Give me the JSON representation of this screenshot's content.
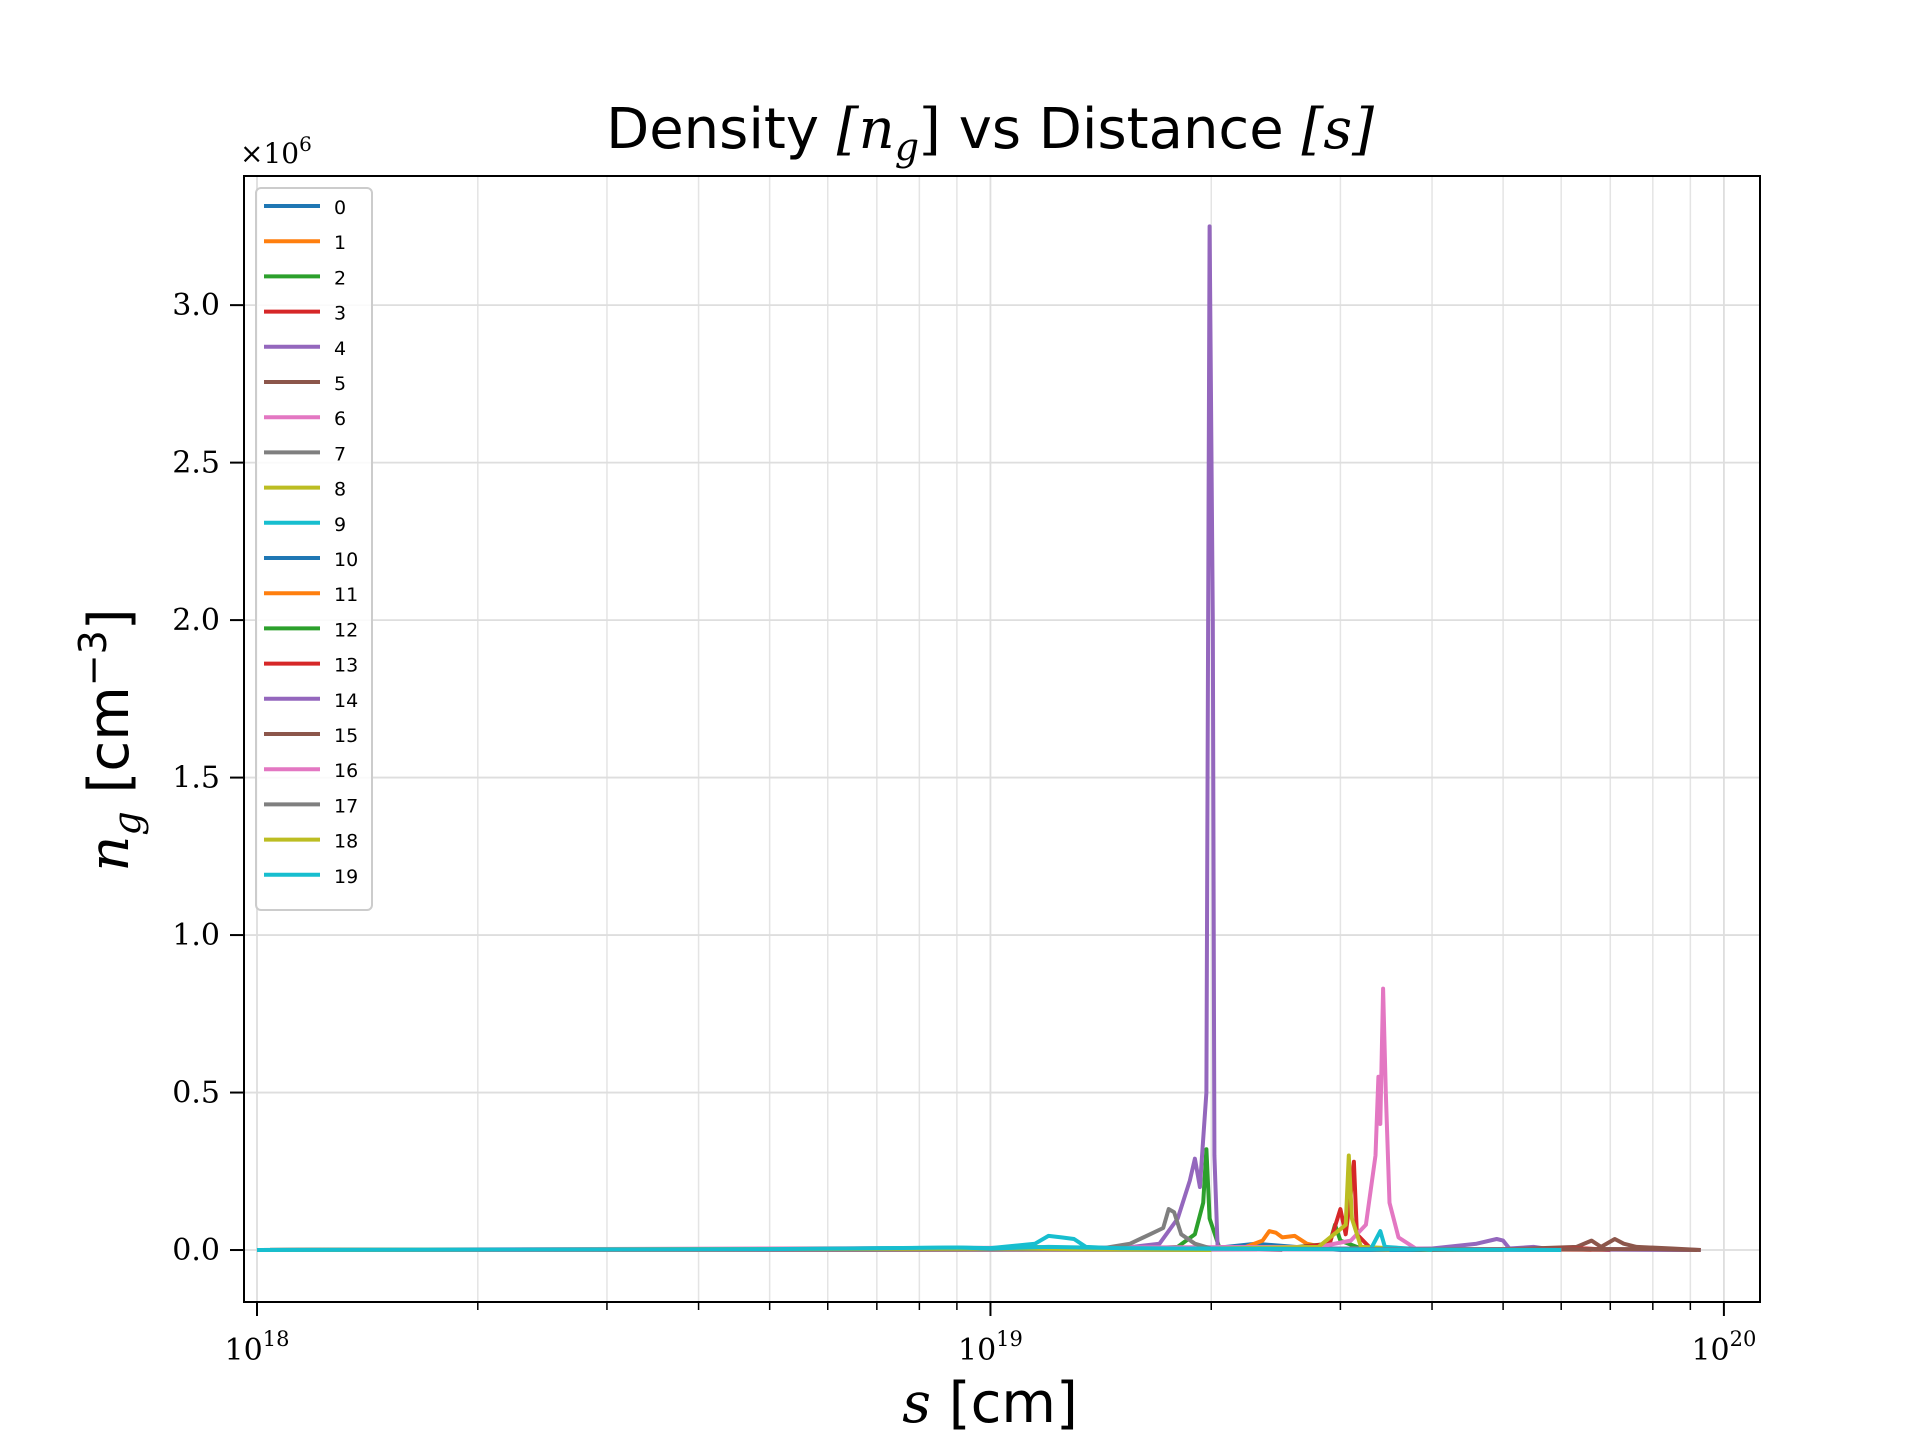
{
  "chart_data": {
    "type": "line",
    "title_prefix": "Density ",
    "title_var1": "[n",
    "title_var1_sub": "g",
    "title_var1_close": "]",
    "title_mid": " vs Distance ",
    "title_var2": "[s]",
    "xlabel_var": "s",
    "xlabel_unit": " [cm]",
    "ylabel_var": "n",
    "ylabel_var_sub": "g",
    "ylabel_unit": " [cm",
    "ylabel_exp": "−3",
    "ylabel_close": "]",
    "y_offset_base": "×10",
    "y_offset_exp": "6",
    "x_scale": "log",
    "xlim": [
      9.6e+17,
      1.12e+20
    ],
    "ylim": [
      -0.165,
      3.41
    ],
    "grid": true,
    "legend_position": "top-left",
    "x_ticks": [
      {
        "value": 1e+18,
        "base": "10",
        "exp": "18"
      },
      {
        "value": 1e+19,
        "base": "10",
        "exp": "19"
      },
      {
        "value": 1e+20,
        "base": "10",
        "exp": "20"
      }
    ],
    "y_ticks": [
      {
        "value": 0.0,
        "label": "0.0"
      },
      {
        "value": 0.5,
        "label": "0.5"
      },
      {
        "value": 1.0,
        "label": "1.0"
      },
      {
        "value": 1.5,
        "label": "1.5"
      },
      {
        "value": 2.0,
        "label": "2.0"
      },
      {
        "value": 2.5,
        "label": "2.5"
      },
      {
        "value": 3.0,
        "label": "3.0"
      }
    ],
    "series": [
      {
        "name": "0",
        "color": "#1f77b4",
        "points": [
          [
            1e+18,
            0
          ],
          [
            1e+19,
            0.002
          ],
          [
            2e+19,
            0.005
          ],
          [
            2.3e+19,
            0.02
          ],
          [
            2.6e+19,
            0.01
          ],
          [
            3e+19,
            0
          ],
          [
            4e+19,
            0
          ]
        ]
      },
      {
        "name": "1",
        "color": "#ff7f0e",
        "points": [
          [
            1e+18,
            0
          ],
          [
            1.5e+19,
            0.002
          ],
          [
            2.2e+19,
            0.005
          ],
          [
            2.35e+19,
            0.03
          ],
          [
            2.4e+19,
            0.06
          ],
          [
            2.45e+19,
            0.055
          ],
          [
            2.5e+19,
            0.04
          ],
          [
            2.6e+19,
            0.045
          ],
          [
            2.7e+19,
            0.02
          ],
          [
            2.9e+19,
            0.005
          ],
          [
            3.5e+19,
            0
          ]
        ]
      },
      {
        "name": "2",
        "color": "#2ca02c",
        "points": [
          [
            1e+18,
            0
          ],
          [
            1.6e+19,
            0.003
          ],
          [
            1.8e+19,
            0.01
          ],
          [
            1.9e+19,
            0.05
          ],
          [
            1.95e+19,
            0.15
          ],
          [
            1.97e+19,
            0.32
          ],
          [
            1.99e+19,
            0.1
          ],
          [
            2.05e+19,
            0.01
          ],
          [
            2.5e+19,
            0.005
          ],
          [
            2.9e+19,
            0.02
          ],
          [
            2.95e+19,
            0.08
          ],
          [
            3e+19,
            0.03
          ],
          [
            3.2e+19,
            0.005
          ],
          [
            4e+19,
            0
          ]
        ]
      },
      {
        "name": "3",
        "color": "#d62728",
        "points": [
          [
            1e+18,
            0
          ],
          [
            2.5e+19,
            0.003
          ],
          [
            2.9e+19,
            0.02
          ],
          [
            3e+19,
            0.13
          ],
          [
            3.05e+19,
            0.05
          ],
          [
            3.1e+19,
            0.18
          ],
          [
            3.13e+19,
            0.28
          ],
          [
            3.16e+19,
            0.05
          ],
          [
            3.3e+19,
            0.005
          ],
          [
            4e+19,
            0
          ],
          [
            6.3e+19,
            0.003
          ],
          [
            6.6e+19,
            0
          ]
        ]
      },
      {
        "name": "4",
        "color": "#9467bd",
        "points": [
          [
            1e+18,
            0
          ],
          [
            1.5e+19,
            0.005
          ],
          [
            1.7e+19,
            0.02
          ],
          [
            1.8e+19,
            0.1
          ],
          [
            1.87e+19,
            0.22
          ],
          [
            1.9e+19,
            0.29
          ],
          [
            1.93e+19,
            0.2
          ],
          [
            1.97e+19,
            0.5
          ],
          [
            1.99e+19,
            3.25
          ],
          [
            2.01e+19,
            2.0
          ],
          [
            2.02e+19,
            0.3
          ],
          [
            2.04e+19,
            0.01
          ],
          [
            3e+19,
            0.005
          ],
          [
            4e+19,
            0.005
          ],
          [
            4.6e+19,
            0.02
          ],
          [
            4.9e+19,
            0.035
          ],
          [
            5e+19,
            0.03
          ],
          [
            5.1e+19,
            0.005
          ],
          [
            5.5e+19,
            0.01
          ],
          [
            5.7e+19,
            0.005
          ],
          [
            7e+19,
            0.003
          ],
          [
            9.3e+19,
            0
          ]
        ]
      },
      {
        "name": "5",
        "color": "#8c564b",
        "points": [
          [
            1e+18,
            0
          ],
          [
            5e+19,
            0.002
          ],
          [
            6.3e+19,
            0.01
          ],
          [
            6.6e+19,
            0.03
          ],
          [
            6.8e+19,
            0.01
          ],
          [
            7.1e+19,
            0.035
          ],
          [
            7.3e+19,
            0.02
          ],
          [
            7.6e+19,
            0.01
          ],
          [
            8.5e+19,
            0.005
          ],
          [
            9.3e+19,
            0
          ]
        ]
      },
      {
        "name": "6",
        "color": "#e377c2",
        "points": [
          [
            1e+18,
            0
          ],
          [
            2.8e+19,
            0.01
          ],
          [
            3.1e+19,
            0.03
          ],
          [
            3.25e+19,
            0.08
          ],
          [
            3.35e+19,
            0.3
          ],
          [
            3.38e+19,
            0.55
          ],
          [
            3.4e+19,
            0.4
          ],
          [
            3.43e+19,
            0.83
          ],
          [
            3.46e+19,
            0.5
          ],
          [
            3.5e+19,
            0.15
          ],
          [
            3.6e+19,
            0.04
          ],
          [
            3.8e+19,
            0.005
          ],
          [
            4.5e+19,
            0
          ]
        ]
      },
      {
        "name": "7",
        "color": "#7f7f7f",
        "points": [
          [
            1e+18,
            0
          ],
          [
            1.4e+19,
            0.003
          ],
          [
            1.55e+19,
            0.02
          ],
          [
            1.65e+19,
            0.05
          ],
          [
            1.72e+19,
            0.07
          ],
          [
            1.75e+19,
            0.13
          ],
          [
            1.78e+19,
            0.12
          ],
          [
            1.82e+19,
            0.05
          ],
          [
            1.9e+19,
            0.02
          ],
          [
            2e+19,
            0.005
          ],
          [
            2.5e+19,
            0
          ]
        ]
      },
      {
        "name": "8",
        "color": "#bcbd22",
        "points": [
          [
            1e+18,
            0
          ],
          [
            1e+19,
            0.003
          ],
          [
            1.15e+19,
            0.01
          ],
          [
            1.3e+19,
            0.005
          ],
          [
            2e+19,
            0.005
          ],
          [
            2.8e+19,
            0.01
          ],
          [
            3.05e+19,
            0.08
          ],
          [
            3.08e+19,
            0.3
          ],
          [
            3.11e+19,
            0.1
          ],
          [
            3.2e+19,
            0.01
          ],
          [
            4e+19,
            0
          ]
        ]
      },
      {
        "name": "9",
        "color": "#17becf",
        "points": [
          [
            1e+18,
            0
          ],
          [
            5e+18,
            0.002
          ],
          [
            9e+18,
            0.008
          ],
          [
            1e+19,
            0.006
          ],
          [
            1.15e+19,
            0.02
          ],
          [
            1.2e+19,
            0.045
          ],
          [
            1.25e+19,
            0.04
          ],
          [
            1.3e+19,
            0.035
          ],
          [
            1.35e+19,
            0.01
          ],
          [
            1.5e+19,
            0.005
          ],
          [
            2e+19,
            0.005
          ],
          [
            3.3e+19,
            0.003
          ],
          [
            3.4e+19,
            0.06
          ],
          [
            3.45e+19,
            0.01
          ],
          [
            4e+19,
            0
          ]
        ]
      },
      {
        "name": "10",
        "color": "#1f77b4",
        "points": [
          [
            1e+18,
            0
          ],
          [
            4e+19,
            0.002
          ],
          [
            6e+19,
            0
          ]
        ]
      },
      {
        "name": "11",
        "color": "#ff7f0e",
        "points": [
          [
            1e+18,
            0
          ],
          [
            5e+19,
            0.002
          ],
          [
            7e+19,
            0
          ]
        ]
      },
      {
        "name": "12",
        "color": "#2ca02c",
        "points": [
          [
            1e+18,
            0
          ],
          [
            3e+19,
            0.003
          ],
          [
            5e+19,
            0
          ]
        ]
      },
      {
        "name": "13",
        "color": "#d62728",
        "points": [
          [
            1e+18,
            0
          ],
          [
            5.5e+19,
            0.003
          ],
          [
            6.5e+19,
            0.005
          ],
          [
            7e+19,
            0
          ]
        ]
      },
      {
        "name": "14",
        "color": "#9467bd",
        "points": [
          [
            1e+18,
            0
          ],
          [
            6e+19,
            0.002
          ],
          [
            9e+19,
            0
          ]
        ]
      },
      {
        "name": "15",
        "color": "#8c564b",
        "points": [
          [
            1e+18,
            0
          ],
          [
            8e+19,
            0.003
          ],
          [
            9.2e+19,
            0
          ]
        ]
      },
      {
        "name": "16",
        "color": "#e377c2",
        "points": [
          [
            1e+18,
            0
          ],
          [
            4e+19,
            0.002
          ],
          [
            6e+19,
            0
          ]
        ]
      },
      {
        "name": "17",
        "color": "#7f7f7f",
        "points": [
          [
            1e+18,
            0
          ],
          [
            1.2e+19,
            0.002
          ],
          [
            2e+19,
            0
          ]
        ]
      },
      {
        "name": "18",
        "color": "#bcbd22",
        "points": [
          [
            1e+18,
            0
          ],
          [
            1.1e+19,
            0.005
          ],
          [
            1.3e+19,
            0.003
          ],
          [
            2e+19,
            0
          ]
        ]
      },
      {
        "name": "19",
        "color": "#17becf",
        "points": [
          [
            1e+18,
            0
          ],
          [
            5e+18,
            0.003
          ],
          [
            9e+18,
            0.008
          ],
          [
            1e+19,
            0.005
          ],
          [
            1.2e+19,
            0.01
          ],
          [
            1.5e+19,
            0.006
          ],
          [
            2e+19,
            0.004
          ],
          [
            6e+19,
            0
          ]
        ]
      }
    ]
  }
}
